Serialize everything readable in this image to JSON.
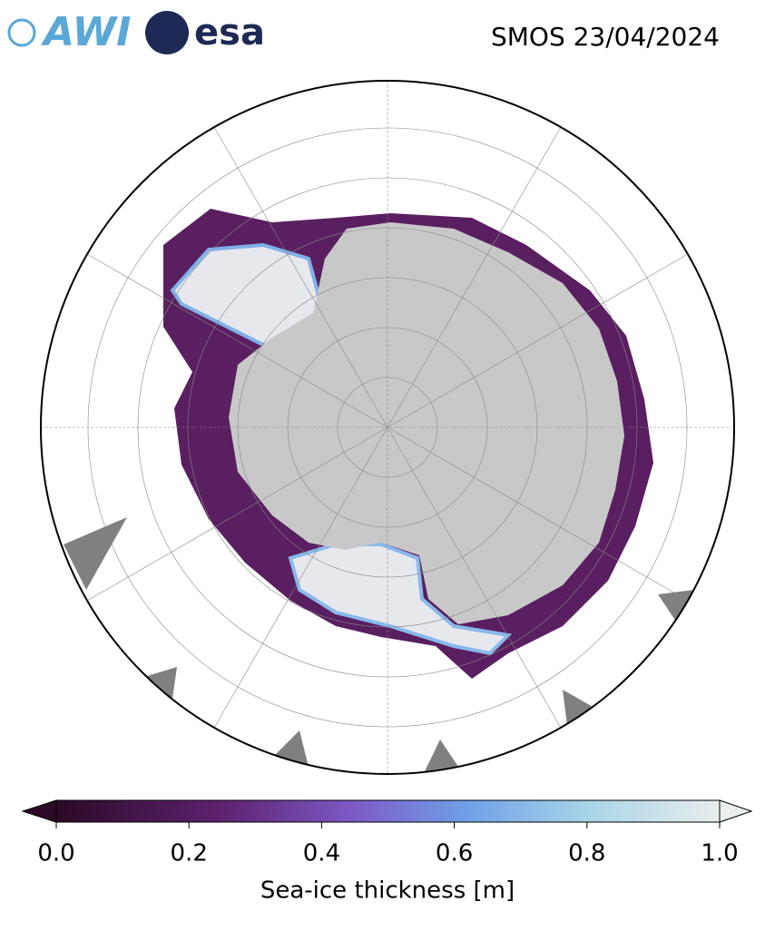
{
  "header": {
    "awi": "AWI",
    "esa": "esa",
    "title": "SMOS 23/04/2024"
  },
  "colorbar": {
    "label": "Sea-ice thickness [m]",
    "range": [
      0,
      1
    ],
    "ticks": [
      {
        "value": 0,
        "label": "0.0"
      },
      {
        "value": 0.2,
        "label": "0.2"
      },
      {
        "value": 0.4,
        "label": "0.4"
      },
      {
        "value": 0.6,
        "label": "0.6"
      },
      {
        "value": 0.8,
        "label": "0.8"
      },
      {
        "value": 1,
        "label": "1.0"
      }
    ]
  }
}
